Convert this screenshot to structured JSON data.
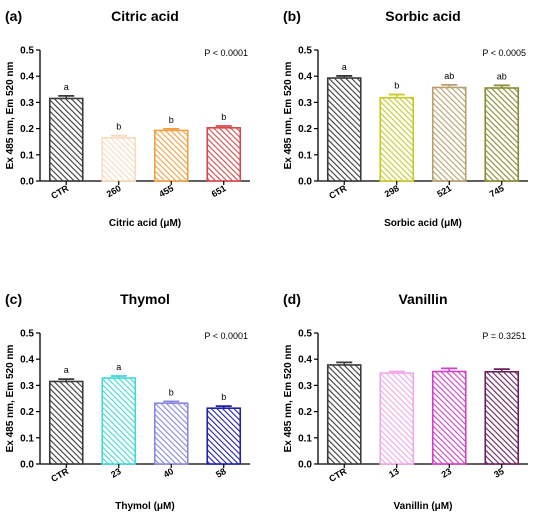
{
  "chart_data": [
    {
      "type": "bar",
      "panel": "(a)",
      "title": "Citric acid",
      "ylabel": "Ex 485 nm, Em 520 nm",
      "xlabel": "Citric acid (μM)",
      "ylim": [
        0,
        0.5
      ],
      "yticks": [
        "0.0",
        "0.1",
        "0.2",
        "0.3",
        "0.4",
        "0.5"
      ],
      "categories": [
        "CTR",
        "260",
        "455",
        "651"
      ],
      "values": [
        0.315,
        0.165,
        0.193,
        0.203
      ],
      "errors": [
        0.01,
        0.008,
        0.006,
        0.007
      ],
      "significance": [
        "a",
        "b",
        "b",
        "b"
      ],
      "pvalue": "P < 0.0001",
      "colors": [
        "#3a3a3a",
        "#f7dcc0",
        "#f0a040",
        "#d84848"
      ]
    },
    {
      "type": "bar",
      "panel": "(b)",
      "title": "Sorbic acid",
      "ylabel": "Ex 485 nm, Em 520 nm",
      "xlabel": "Sorbic acid (μM)",
      "ylim": [
        0,
        0.5
      ],
      "yticks": [
        "0.0",
        "0.1",
        "0.2",
        "0.3",
        "0.4",
        "0.5"
      ],
      "categories": [
        "CTR",
        "298",
        "521",
        "745"
      ],
      "values": [
        0.393,
        0.318,
        0.357,
        0.355
      ],
      "errors": [
        0.008,
        0.012,
        0.01,
        0.01
      ],
      "significance": [
        "a",
        "b",
        "ab",
        "ab"
      ],
      "pvalue": "P < 0.0005",
      "colors": [
        "#3a3a3a",
        "#c8c828",
        "#b8a070",
        "#8a8a30"
      ]
    },
    {
      "type": "bar",
      "panel": "(c)",
      "title": "Thymol",
      "ylabel": "Ex 485 nm, Em 520 nm",
      "xlabel": "Thymol (μM)",
      "ylim": [
        0,
        0.5
      ],
      "yticks": [
        "0.0",
        "0.1",
        "0.2",
        "0.3",
        "0.4",
        "0.5"
      ],
      "categories": [
        "CTR",
        "23",
        "40",
        "58"
      ],
      "values": [
        0.315,
        0.328,
        0.232,
        0.213
      ],
      "errors": [
        0.009,
        0.008,
        0.007,
        0.008
      ],
      "significance": [
        "a",
        "a",
        "b",
        "b"
      ],
      "pvalue": "P < 0.0001",
      "colors": [
        "#3a3a3a",
        "#40d8d8",
        "#8888e0",
        "#2020a8"
      ]
    },
    {
      "type": "bar",
      "panel": "(d)",
      "title": "Vanillin",
      "ylabel": "Ex 485 nm, Em 520 nm",
      "xlabel": "Vanillin (μM)",
      "ylim": [
        0,
        0.5
      ],
      "yticks": [
        "0.0",
        "0.1",
        "0.2",
        "0.3",
        "0.4",
        "0.5"
      ],
      "categories": [
        "CTR",
        "13",
        "23",
        "35"
      ],
      "values": [
        0.378,
        0.347,
        0.353,
        0.352
      ],
      "errors": [
        0.01,
        0.006,
        0.012,
        0.01
      ],
      "significance": [
        "",
        "",
        "",
        ""
      ],
      "pvalue": "P = 0.3251",
      "colors": [
        "#3a3a3a",
        "#f0a8e8",
        "#d040c8",
        "#6a2060"
      ]
    }
  ]
}
